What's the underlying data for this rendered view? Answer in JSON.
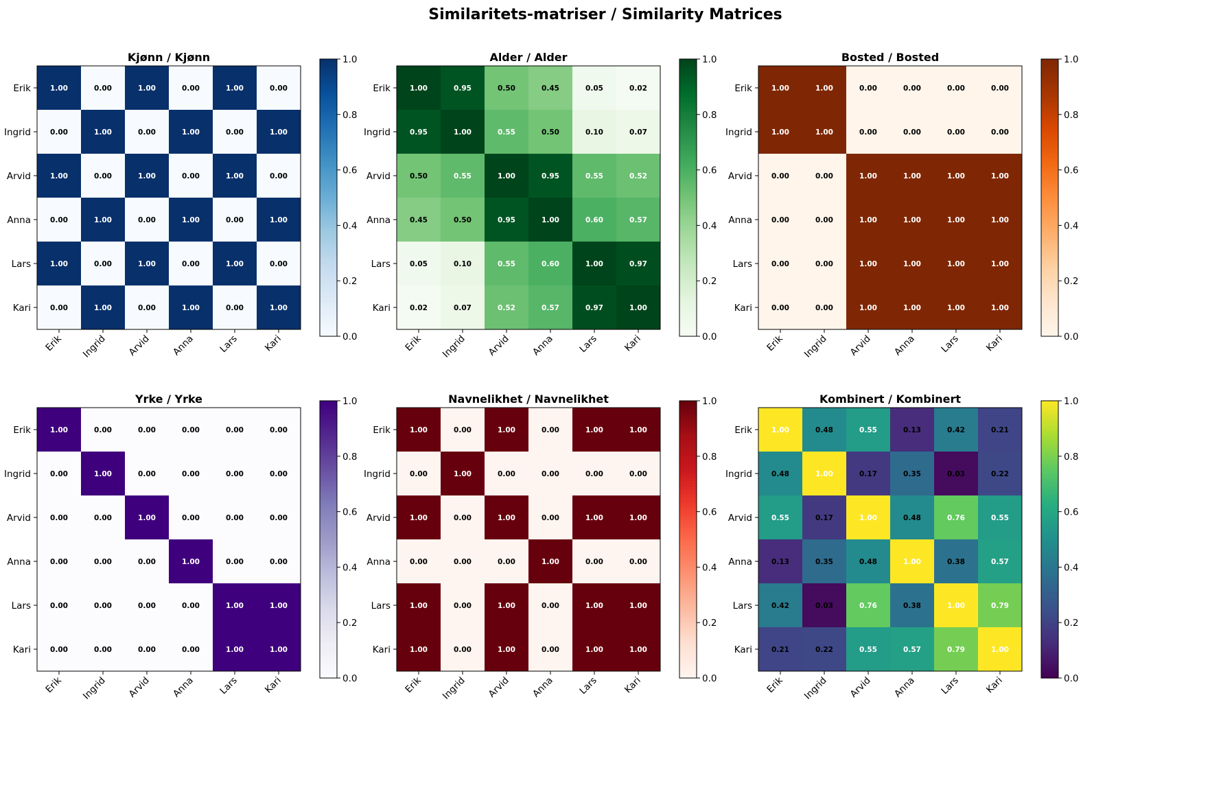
{
  "figure": {
    "suptitle": "Similaritets-matriser / Similarity Matrices"
  },
  "chart_data": [
    {
      "type": "heatmap",
      "title": "Kjønn / Kjønn",
      "colormap": "Blues",
      "x_labels": [
        "Erik",
        "Ingrid",
        "Arvid",
        "Anna",
        "Lars",
        "Kari"
      ],
      "y_labels": [
        "Erik",
        "Ingrid",
        "Arvid",
        "Anna",
        "Lars",
        "Kari"
      ],
      "values": [
        [
          1.0,
          0.0,
          1.0,
          0.0,
          1.0,
          0.0
        ],
        [
          0.0,
          1.0,
          0.0,
          1.0,
          0.0,
          1.0
        ],
        [
          1.0,
          0.0,
          1.0,
          0.0,
          1.0,
          0.0
        ],
        [
          0.0,
          1.0,
          0.0,
          1.0,
          0.0,
          1.0
        ],
        [
          1.0,
          0.0,
          1.0,
          0.0,
          1.0,
          0.0
        ],
        [
          0.0,
          1.0,
          0.0,
          1.0,
          0.0,
          1.0
        ]
      ],
      "value_range": [
        0,
        1
      ],
      "colorbar_ticks": [
        "0.0",
        "0.2",
        "0.4",
        "0.6",
        "0.8",
        "1.0"
      ]
    },
    {
      "type": "heatmap",
      "title": "Alder / Alder",
      "colormap": "Greens",
      "x_labels": [
        "Erik",
        "Ingrid",
        "Arvid",
        "Anna",
        "Lars",
        "Kari"
      ],
      "y_labels": [
        "Erik",
        "Ingrid",
        "Arvid",
        "Anna",
        "Lars",
        "Kari"
      ],
      "values": [
        [
          1.0,
          0.95,
          0.5,
          0.45,
          0.05,
          0.02
        ],
        [
          0.95,
          1.0,
          0.55,
          0.5,
          0.1,
          0.07
        ],
        [
          0.5,
          0.55,
          1.0,
          0.95,
          0.55,
          0.52
        ],
        [
          0.45,
          0.5,
          0.95,
          1.0,
          0.6,
          0.57
        ],
        [
          0.05,
          0.1,
          0.55,
          0.6,
          1.0,
          0.97
        ],
        [
          0.02,
          0.07,
          0.52,
          0.57,
          0.97,
          1.0
        ]
      ],
      "value_range": [
        0,
        1
      ],
      "colorbar_ticks": [
        "0.0",
        "0.2",
        "0.4",
        "0.6",
        "0.8",
        "1.0"
      ]
    },
    {
      "type": "heatmap",
      "title": "Bosted / Bosted",
      "colormap": "Oranges",
      "x_labels": [
        "Erik",
        "Ingrid",
        "Arvid",
        "Anna",
        "Lars",
        "Kari"
      ],
      "y_labels": [
        "Erik",
        "Ingrid",
        "Arvid",
        "Anna",
        "Lars",
        "Kari"
      ],
      "values": [
        [
          1.0,
          1.0,
          0.0,
          0.0,
          0.0,
          0.0
        ],
        [
          1.0,
          1.0,
          0.0,
          0.0,
          0.0,
          0.0
        ],
        [
          0.0,
          0.0,
          1.0,
          1.0,
          1.0,
          1.0
        ],
        [
          0.0,
          0.0,
          1.0,
          1.0,
          1.0,
          1.0
        ],
        [
          0.0,
          0.0,
          1.0,
          1.0,
          1.0,
          1.0
        ],
        [
          0.0,
          0.0,
          1.0,
          1.0,
          1.0,
          1.0
        ]
      ],
      "value_range": [
        0,
        1
      ],
      "colorbar_ticks": [
        "0.0",
        "0.2",
        "0.4",
        "0.6",
        "0.8",
        "1.0"
      ]
    },
    {
      "type": "heatmap",
      "title": "Yrke / Yrke",
      "colormap": "Purples",
      "x_labels": [
        "Erik",
        "Ingrid",
        "Arvid",
        "Anna",
        "Lars",
        "Kari"
      ],
      "y_labels": [
        "Erik",
        "Ingrid",
        "Arvid",
        "Anna",
        "Lars",
        "Kari"
      ],
      "values": [
        [
          1.0,
          0.0,
          0.0,
          0.0,
          0.0,
          0.0
        ],
        [
          0.0,
          1.0,
          0.0,
          0.0,
          0.0,
          0.0
        ],
        [
          0.0,
          0.0,
          1.0,
          0.0,
          0.0,
          0.0
        ],
        [
          0.0,
          0.0,
          0.0,
          1.0,
          0.0,
          0.0
        ],
        [
          0.0,
          0.0,
          0.0,
          0.0,
          1.0,
          1.0
        ],
        [
          0.0,
          0.0,
          0.0,
          0.0,
          1.0,
          1.0
        ]
      ],
      "value_range": [
        0,
        1
      ],
      "colorbar_ticks": [
        "0.0",
        "0.2",
        "0.4",
        "0.6",
        "0.8",
        "1.0"
      ]
    },
    {
      "type": "heatmap",
      "title": "Navnelikhet / Navnelikhet",
      "colormap": "Reds",
      "x_labels": [
        "Erik",
        "Ingrid",
        "Arvid",
        "Anna",
        "Lars",
        "Kari"
      ],
      "y_labels": [
        "Erik",
        "Ingrid",
        "Arvid",
        "Anna",
        "Lars",
        "Kari"
      ],
      "values": [
        [
          1.0,
          0.0,
          1.0,
          0.0,
          1.0,
          1.0
        ],
        [
          0.0,
          1.0,
          0.0,
          0.0,
          0.0,
          0.0
        ],
        [
          1.0,
          0.0,
          1.0,
          0.0,
          1.0,
          1.0
        ],
        [
          0.0,
          0.0,
          0.0,
          1.0,
          0.0,
          0.0
        ],
        [
          1.0,
          0.0,
          1.0,
          0.0,
          1.0,
          1.0
        ],
        [
          1.0,
          0.0,
          1.0,
          0.0,
          1.0,
          1.0
        ]
      ],
      "value_range": [
        0,
        1
      ],
      "colorbar_ticks": [
        "0.0",
        "0.2",
        "0.4",
        "0.6",
        "0.8",
        "1.0"
      ]
    },
    {
      "type": "heatmap",
      "title": "Kombinert / Kombinert",
      "colormap": "viridis",
      "x_labels": [
        "Erik",
        "Ingrid",
        "Arvid",
        "Anna",
        "Lars",
        "Kari"
      ],
      "y_labels": [
        "Erik",
        "Ingrid",
        "Arvid",
        "Anna",
        "Lars",
        "Kari"
      ],
      "values": [
        [
          1.0,
          0.48,
          0.55,
          0.13,
          0.42,
          0.21
        ],
        [
          0.48,
          1.0,
          0.17,
          0.35,
          0.03,
          0.22
        ],
        [
          0.55,
          0.17,
          1.0,
          0.48,
          0.76,
          0.55
        ],
        [
          0.13,
          0.35,
          0.48,
          1.0,
          0.38,
          0.57
        ],
        [
          0.42,
          0.03,
          0.76,
          0.38,
          1.0,
          0.79
        ],
        [
          0.21,
          0.22,
          0.55,
          0.57,
          0.79,
          1.0
        ]
      ],
      "value_range": [
        0,
        1
      ],
      "colorbar_ticks": [
        "0.0",
        "0.2",
        "0.4",
        "0.6",
        "0.8",
        "1.0"
      ]
    }
  ]
}
